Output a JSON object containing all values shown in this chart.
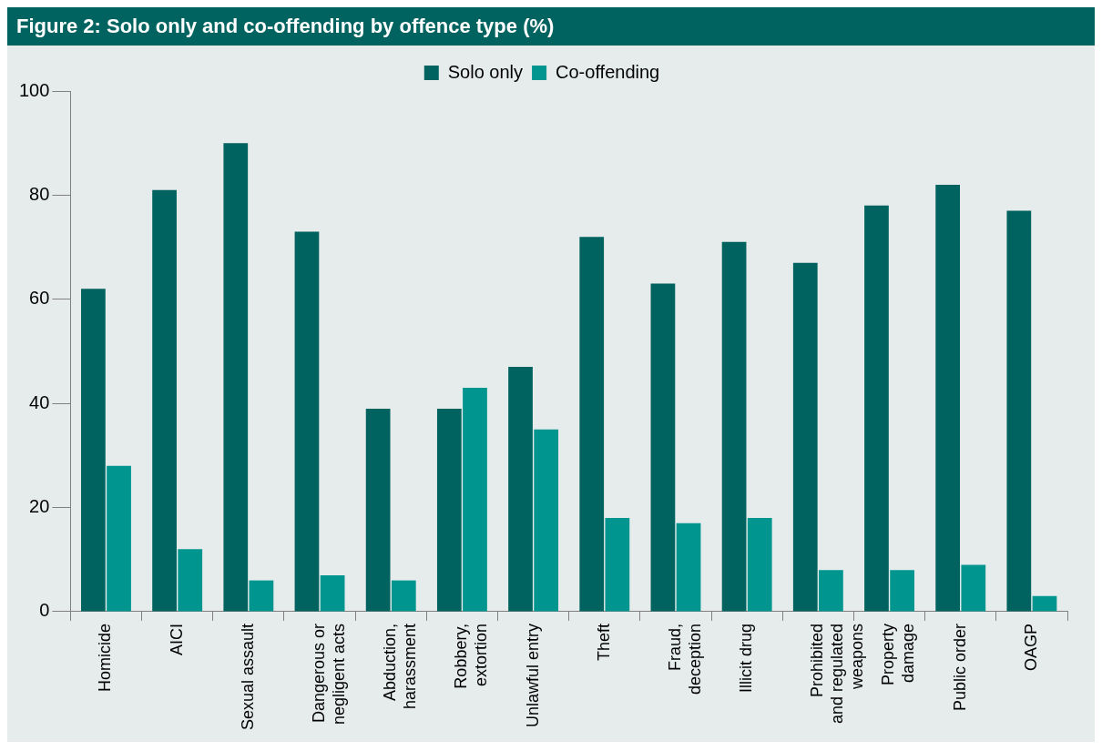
{
  "chart_data": {
    "type": "bar",
    "title": "Figure 2: Solo only and co-offending by offence type (%)",
    "categories": [
      "Homicide",
      "AICI",
      "Sexual assault",
      "Dangerous or\nnegligent acts",
      "Abduction,\nharassment",
      "Robbery,\nextortion",
      "Unlawful entry",
      "Theft",
      "Fraud,\ndeception",
      "Illicit drug",
      "Prohibited\nand regulated\nweapons",
      "Property\ndamage",
      "Public order",
      "OAGP"
    ],
    "series": [
      {
        "name": "Solo only",
        "color": "#00635f",
        "values": [
          62,
          81,
          90,
          73,
          39,
          39,
          47,
          72,
          63,
          71,
          67,
          78,
          82,
          77
        ]
      },
      {
        "name": "Co-offending",
        "color": "#00968f",
        "values": [
          28,
          12,
          6,
          7,
          6,
          43,
          35,
          18,
          17,
          18,
          8,
          8,
          9,
          3
        ]
      }
    ],
    "ylim": [
      0,
      100
    ],
    "yticks": [
      0,
      20,
      40,
      60,
      80,
      100
    ],
    "grid": false,
    "legend": "top"
  }
}
